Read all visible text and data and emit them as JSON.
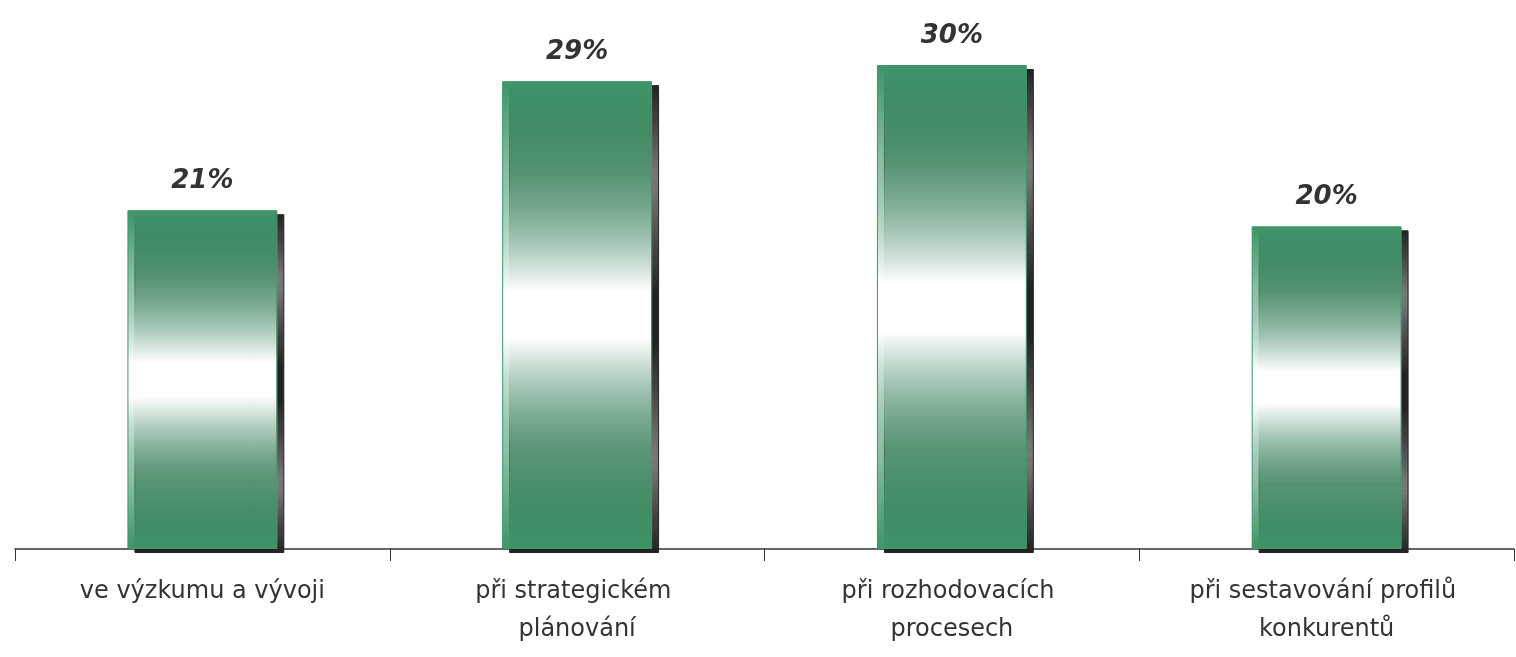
{
  "chart_data": {
    "type": "bar",
    "categories": [
      "ve výzkumu a vývoji",
      "při strategickém plánování",
      "při rozhodovacích procesech",
      "při sestavování profilů konkurentů"
    ],
    "values": [
      21,
      29,
      30,
      20
    ],
    "value_labels": [
      "21%",
      "29%",
      "30%",
      "20%"
    ],
    "color": "#3f9468"
  }
}
